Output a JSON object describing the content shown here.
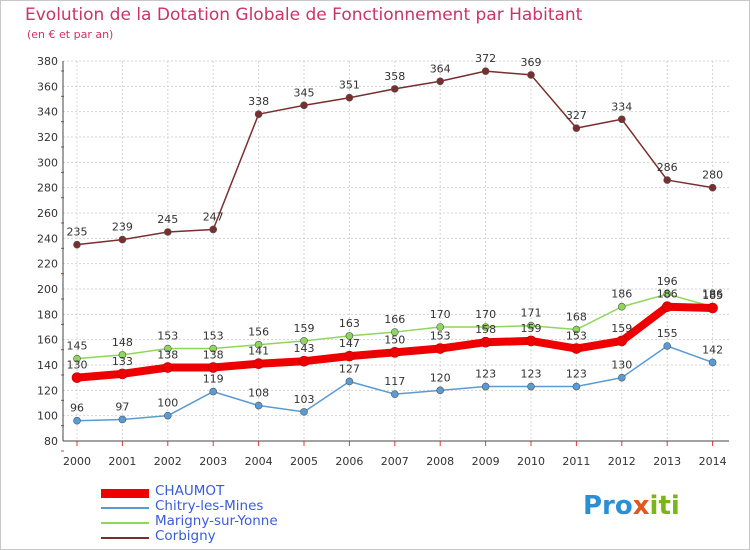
{
  "title": "Evolution de la Dotation Globale de Fonctionnement par Habitant",
  "subtitle": "(en € et par an)",
  "logo": {
    "text": "Proxiti",
    "part1": "Pro",
    "part2": "x",
    "part3": "iti"
  },
  "chart_data": {
    "type": "line",
    "title": "Evolution de la Dotation Globale de Fonctionnement par Habitant",
    "subtitle": "(en € et par an)",
    "xlabel": "",
    "ylabel": "",
    "x": [
      "2000",
      "2001",
      "2002",
      "2003",
      "2004",
      "2005",
      "2006",
      "2007",
      "2008",
      "2009",
      "2010",
      "2011",
      "2012",
      "2013",
      "2014"
    ],
    "ylim": [
      80,
      380
    ],
    "yticks": [
      "80",
      "100",
      "120",
      "140",
      "160",
      "180",
      "200",
      "220",
      "240",
      "260",
      "280",
      "300",
      "320",
      "340",
      "360",
      "380"
    ],
    "legend_position": "bottom-left",
    "grid": true,
    "series": [
      {
        "name": "CHAUMOT",
        "color": "#ee0000",
        "values": [
          130,
          133,
          138,
          138,
          141,
          143,
          147,
          150,
          153,
          158,
          159,
          153,
          159,
          186,
          185
        ],
        "labels": [
          "130",
          "133",
          "138",
          "138",
          "141",
          "143",
          "147",
          "150",
          "153",
          "158",
          "159",
          "153",
          "159",
          "186",
          "185"
        ]
      },
      {
        "name": "Chitry-les-Mines",
        "color": "#5b9bd5",
        "values": [
          96,
          97,
          100,
          119,
          108,
          103,
          127,
          117,
          120,
          123,
          123,
          123,
          130,
          155,
          142
        ],
        "labels": [
          "96",
          "97",
          "100",
          "119",
          "108",
          "103",
          "127",
          "117",
          "120",
          "123",
          "123",
          "123",
          "130",
          "155",
          "142"
        ]
      },
      {
        "name": "Marigny-sur-Yonne",
        "color": "#8ed65c",
        "values": [
          145,
          148,
          153,
          153,
          156,
          159,
          163,
          166,
          170,
          170,
          171,
          168,
          186,
          196,
          186
        ],
        "labels": [
          "145",
          "148",
          "153",
          "153",
          "156",
          "159",
          "163",
          "166",
          "170",
          "170",
          "171",
          "168",
          "186",
          "196",
          "186"
        ]
      },
      {
        "name": "Corbigny",
        "color": "#7a2e2e",
        "values": [
          235,
          239,
          245,
          247,
          338,
          345,
          351,
          358,
          364,
          372,
          369,
          327,
          334,
          286,
          280
        ],
        "labels": [
          "235",
          "239",
          "245",
          "247",
          "338",
          "345",
          "351",
          "358",
          "364",
          "372",
          "369",
          "327",
          "334",
          "286",
          "280"
        ]
      }
    ]
  }
}
